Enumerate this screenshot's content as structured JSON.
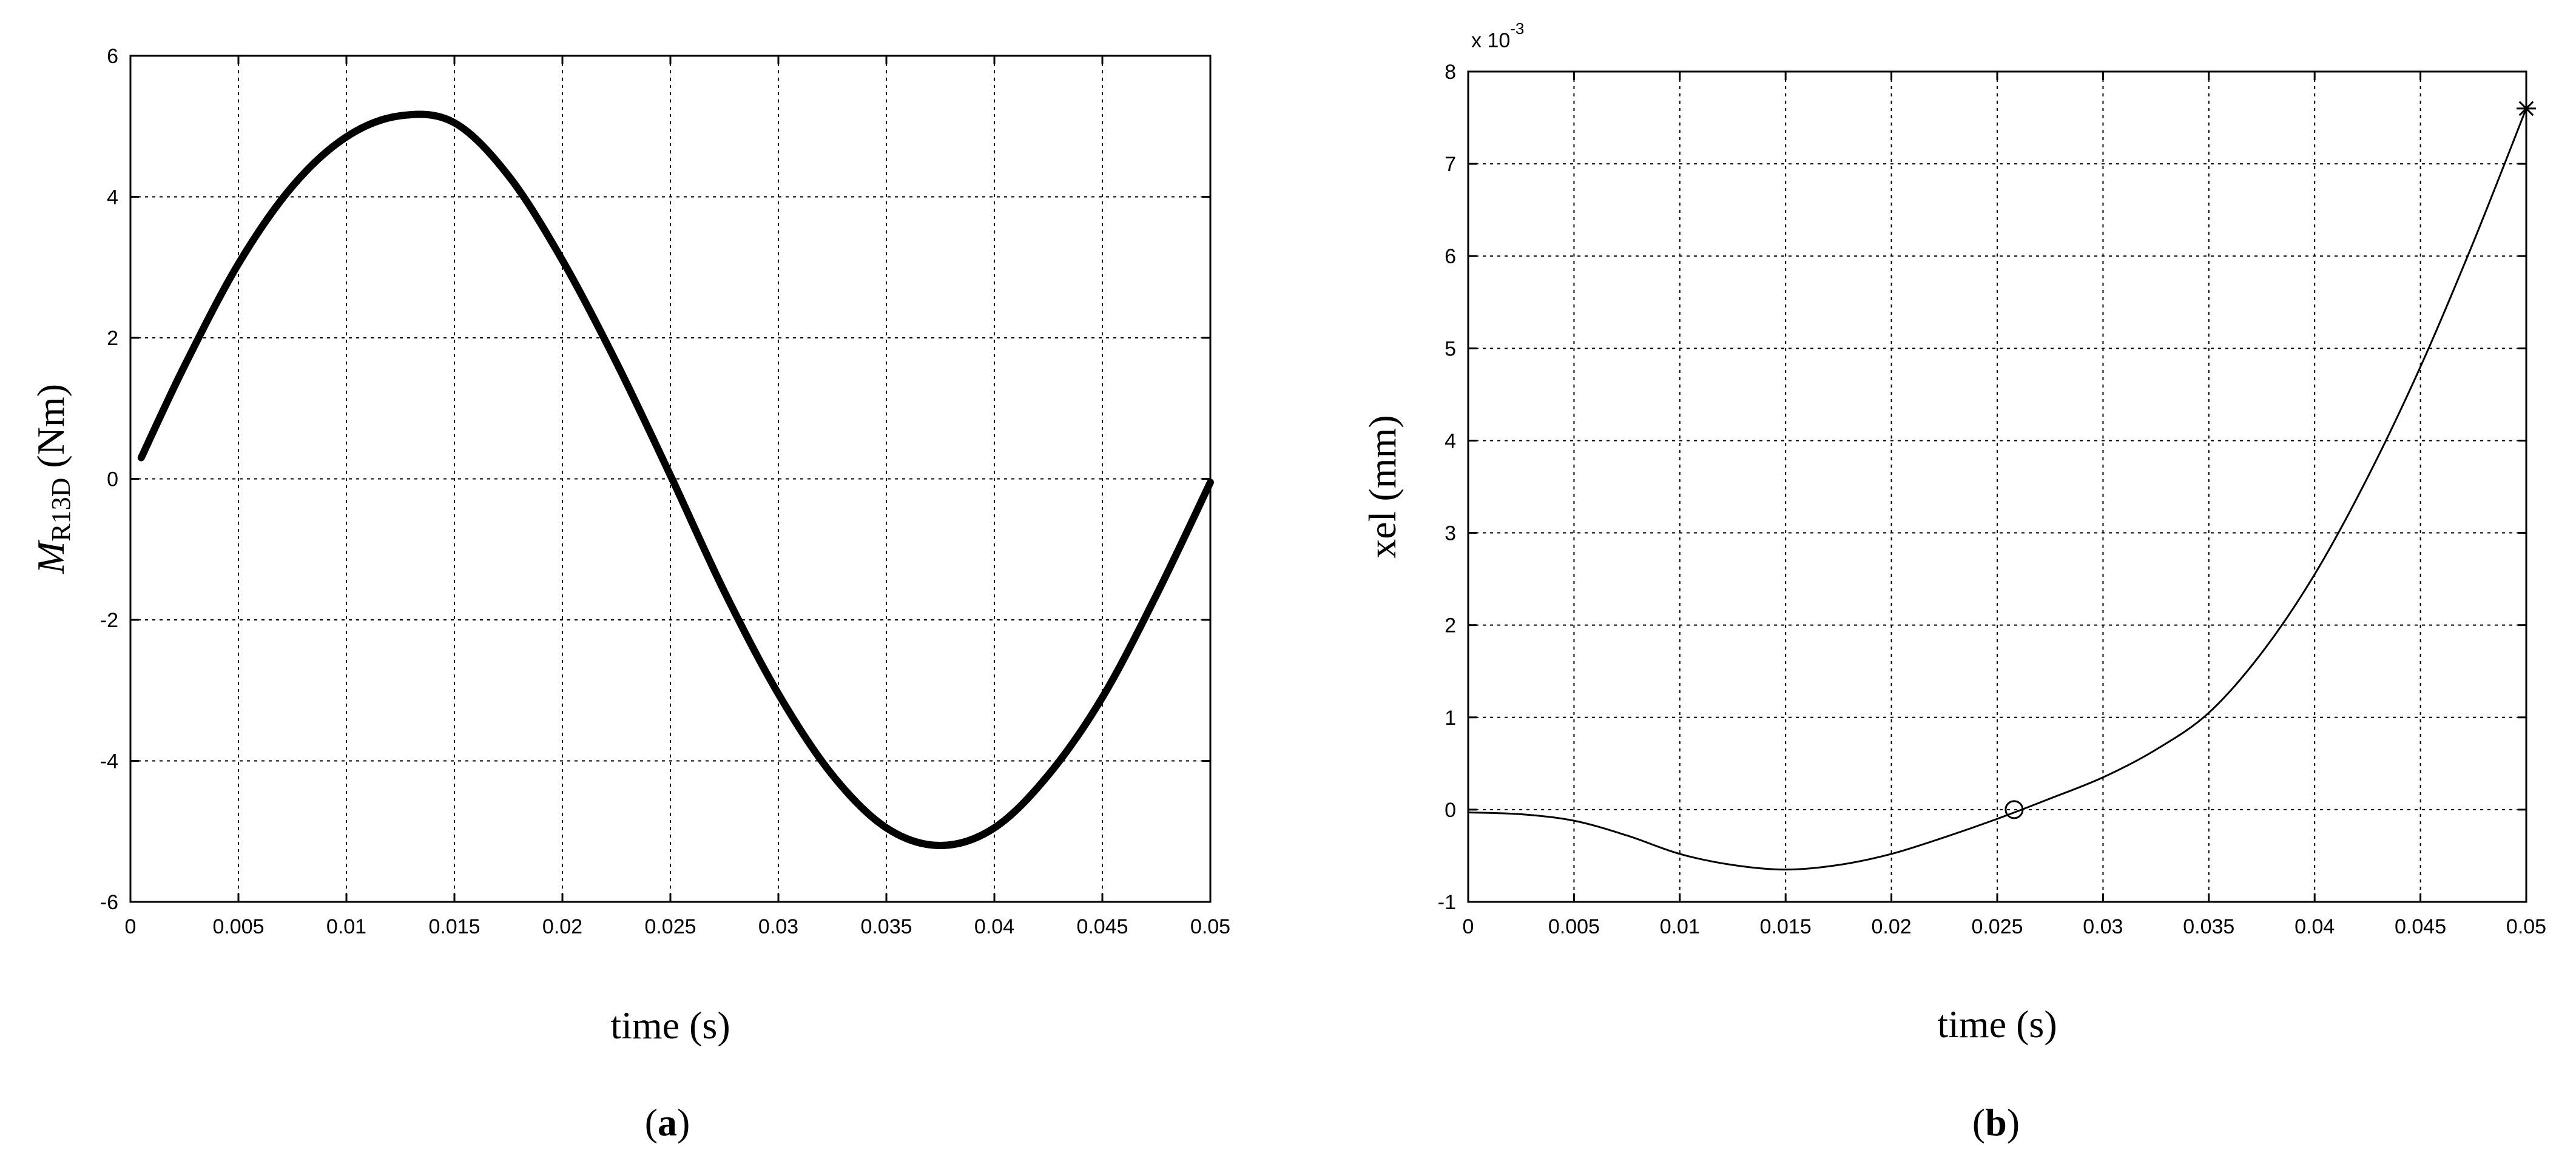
{
  "chart_data": [
    {
      "type": "line",
      "panel_label": "a",
      "xlabel": "time (s)",
      "ylabel_main": "M",
      "ylabel_sub": "R13D",
      "ylabel_unit": " (Nm)",
      "xlim": [
        0,
        0.05
      ],
      "ylim": [
        -6,
        6
      ],
      "x_ticks": [
        0,
        0.005,
        0.01,
        0.015,
        0.02,
        0.025,
        0.03,
        0.035,
        0.04,
        0.045,
        0.05
      ],
      "x_tick_labels": [
        "0",
        "0.005",
        "0.01",
        "0.015",
        "0.02",
        "0.025",
        "0.03",
        "0.035",
        "0.04",
        "0.045",
        "0.05"
      ],
      "y_ticks": [
        -6,
        -4,
        -2,
        0,
        2,
        4,
        6
      ],
      "y_tick_labels": [
        "-6",
        "-4",
        "-2",
        "0",
        "2",
        "4",
        "6"
      ],
      "grid": true,
      "series": [
        {
          "x": [
            0.0005,
            0.0025,
            0.005,
            0.0075,
            0.01,
            0.0125,
            0.015,
            0.0175,
            0.02,
            0.0225,
            0.025,
            0.0275,
            0.03,
            0.0325,
            0.035,
            0.0375,
            0.04,
            0.0425,
            0.045,
            0.0475,
            0.05
          ],
          "y": [
            0.3,
            1.6,
            3.05,
            4.15,
            4.85,
            5.15,
            5.05,
            4.3,
            3.1,
            1.65,
            0.05,
            -1.6,
            -3.05,
            -4.2,
            -4.95,
            -5.2,
            -4.95,
            -4.2,
            -3.1,
            -1.65,
            -0.05
          ],
          "color": "#000000"
        }
      ]
    },
    {
      "type": "line",
      "panel_label": "b",
      "xlabel": "time (s)",
      "ylabel_main": "xel (mm)",
      "exponent_label": "x 10",
      "exponent_power": "-3",
      "xlim": [
        0,
        0.05
      ],
      "ylim": [
        -1,
        8
      ],
      "x_ticks": [
        0,
        0.005,
        0.01,
        0.015,
        0.02,
        0.025,
        0.03,
        0.035,
        0.04,
        0.045,
        0.05
      ],
      "x_tick_labels": [
        "0",
        "0.005",
        "0.01",
        "0.015",
        "0.02",
        "0.025",
        "0.03",
        "0.035",
        "0.04",
        "0.045",
        "0.05"
      ],
      "y_ticks": [
        -1,
        0,
        1,
        2,
        3,
        4,
        5,
        6,
        7,
        8
      ],
      "y_tick_labels": [
        "-1",
        "0",
        "1",
        "2",
        "3",
        "4",
        "5",
        "6",
        "7",
        "8"
      ],
      "grid": true,
      "series": [
        {
          "x": [
            0,
            0.0025,
            0.005,
            0.0075,
            0.01,
            0.0125,
            0.015,
            0.0175,
            0.02,
            0.0225,
            0.025,
            0.0275,
            0.03,
            0.0325,
            0.035,
            0.0375,
            0.04,
            0.0425,
            0.045,
            0.0475,
            0.05
          ],
          "y": [
            -0.03,
            -0.05,
            -0.12,
            -0.28,
            -0.48,
            -0.6,
            -0.65,
            -0.6,
            -0.48,
            -0.3,
            -0.1,
            0.12,
            0.35,
            0.65,
            1.05,
            1.7,
            2.55,
            3.6,
            4.8,
            6.15,
            7.6
          ],
          "color": "#000000"
        }
      ],
      "markers": [
        {
          "x": 0.0258,
          "y": 0.0,
          "symbol": "circle"
        },
        {
          "x": 0.05,
          "y": 7.6,
          "symbol": "star"
        }
      ]
    }
  ]
}
